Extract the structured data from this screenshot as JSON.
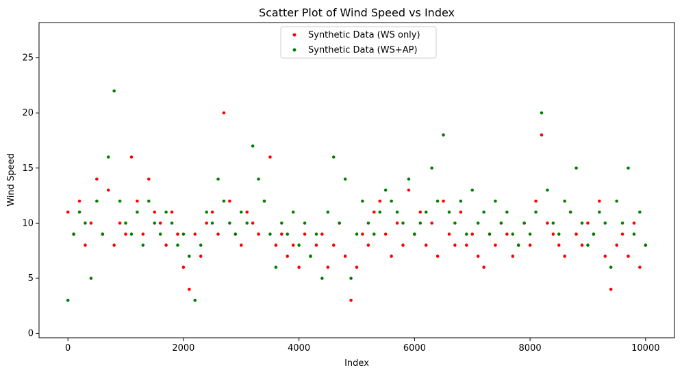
{
  "chart_data": {
    "type": "scatter",
    "title": "Scatter Plot of Wind Speed vs Index",
    "xlabel": "Index",
    "ylabel": "Wind Speed",
    "xlim": [
      -500,
      10500
    ],
    "ylim": [
      -0.4,
      28.2
    ],
    "xticks": [
      0,
      2000,
      4000,
      6000,
      8000,
      10000
    ],
    "yticks": [
      0,
      5,
      10,
      15,
      20,
      25
    ],
    "grid": false,
    "legend": "upper-center",
    "series": [
      {
        "name": "Synthetic Data (WS only)",
        "color": "#ff0000",
        "x": [
          0,
          100,
          200,
          300,
          400,
          500,
          600,
          700,
          800,
          900,
          1000,
          1100,
          1200,
          1300,
          1400,
          1500,
          1600,
          1700,
          1800,
          1900,
          2000,
          2100,
          2200,
          2300,
          2400,
          2500,
          2600,
          2700,
          2800,
          2900,
          3000,
          3100,
          3200,
          3300,
          3400,
          3500,
          3600,
          3700,
          3800,
          3900,
          4000,
          4100,
          4200,
          4300,
          4400,
          4500,
          4600,
          4700,
          4800,
          4900,
          5000,
          5100,
          5200,
          5300,
          5400,
          5500,
          5600,
          5700,
          5800,
          5900,
          6000,
          6100,
          6200,
          6300,
          6400,
          6500,
          6600,
          6700,
          6800,
          6900,
          7000,
          7100,
          7200,
          7300,
          7400,
          7500,
          7600,
          7700,
          7800,
          7900,
          8000,
          8100,
          8200,
          8300,
          8400,
          8500,
          8600,
          8700,
          8800,
          8900,
          9000,
          9100,
          9200,
          9300,
          9400,
          9500,
          9600,
          9700,
          9800,
          9900,
          10000
        ],
        "y": [
          11,
          9,
          12,
          8,
          10,
          14,
          9,
          13,
          8,
          10,
          9,
          16,
          12,
          9,
          14,
          11,
          10,
          8,
          11,
          9,
          6,
          4,
          9,
          7,
          10,
          11,
          9,
          20,
          12,
          9,
          8,
          11,
          10,
          9,
          12,
          16,
          8,
          9,
          7,
          8,
          6,
          9,
          7,
          8,
          9,
          6,
          8,
          10,
          7,
          3,
          6,
          9,
          8,
          11,
          12,
          9,
          7,
          10,
          8,
          13,
          9,
          11,
          8,
          10,
          7,
          12,
          9,
          8,
          11,
          8,
          9,
          7,
          6,
          9,
          8,
          10,
          9,
          7,
          8,
          10,
          8,
          12,
          18,
          10,
          9,
          8,
          7,
          11,
          9,
          8,
          10,
          9,
          12,
          7,
          4,
          8,
          9,
          7,
          10,
          6,
          8
        ]
      },
      {
        "name": "Synthetic Data (WS+AP)",
        "color": "#008000",
        "x": [
          0,
          100,
          200,
          300,
          400,
          500,
          600,
          700,
          800,
          900,
          1000,
          1100,
          1200,
          1300,
          1400,
          1500,
          1600,
          1700,
          1800,
          1900,
          2000,
          2100,
          2200,
          2300,
          2400,
          2500,
          2600,
          2700,
          2800,
          2900,
          3000,
          3100,
          3200,
          3300,
          3400,
          3500,
          3600,
          3700,
          3800,
          3900,
          4000,
          4100,
          4200,
          4300,
          4400,
          4500,
          4600,
          4700,
          4800,
          4900,
          5000,
          5100,
          5200,
          5300,
          5400,
          5500,
          5600,
          5700,
          5800,
          5900,
          6000,
          6100,
          6200,
          6300,
          6400,
          6500,
          6600,
          6700,
          6800,
          6900,
          7000,
          7100,
          7200,
          7300,
          7400,
          7500,
          7600,
          7700,
          7800,
          7900,
          8000,
          8100,
          8200,
          8300,
          8400,
          8500,
          8600,
          8700,
          8800,
          8900,
          9000,
          9100,
          9200,
          9300,
          9400,
          9500,
          9600,
          9700,
          9800,
          9900,
          10000
        ],
        "y": [
          3,
          9,
          11,
          10,
          5,
          12,
          9,
          16,
          22,
          12,
          10,
          9,
          11,
          8,
          12,
          10,
          9,
          11,
          10,
          8,
          9,
          7,
          3,
          8,
          11,
          10,
          14,
          12,
          10,
          9,
          11,
          10,
          17,
          14,
          12,
          9,
          6,
          10,
          9,
          11,
          8,
          10,
          7,
          9,
          5,
          11,
          16,
          10,
          14,
          5,
          9,
          12,
          10,
          9,
          11,
          13,
          12,
          11,
          10,
          14,
          9,
          10,
          11,
          15,
          12,
          18,
          11,
          10,
          12,
          9,
          13,
          10,
          11,
          9,
          12,
          10,
          11,
          9,
          8,
          10,
          9,
          11,
          20,
          13,
          10,
          9,
          12,
          11,
          15,
          10,
          8,
          9,
          11,
          10,
          6,
          12,
          10,
          15,
          9,
          11,
          8
        ]
      }
    ]
  }
}
